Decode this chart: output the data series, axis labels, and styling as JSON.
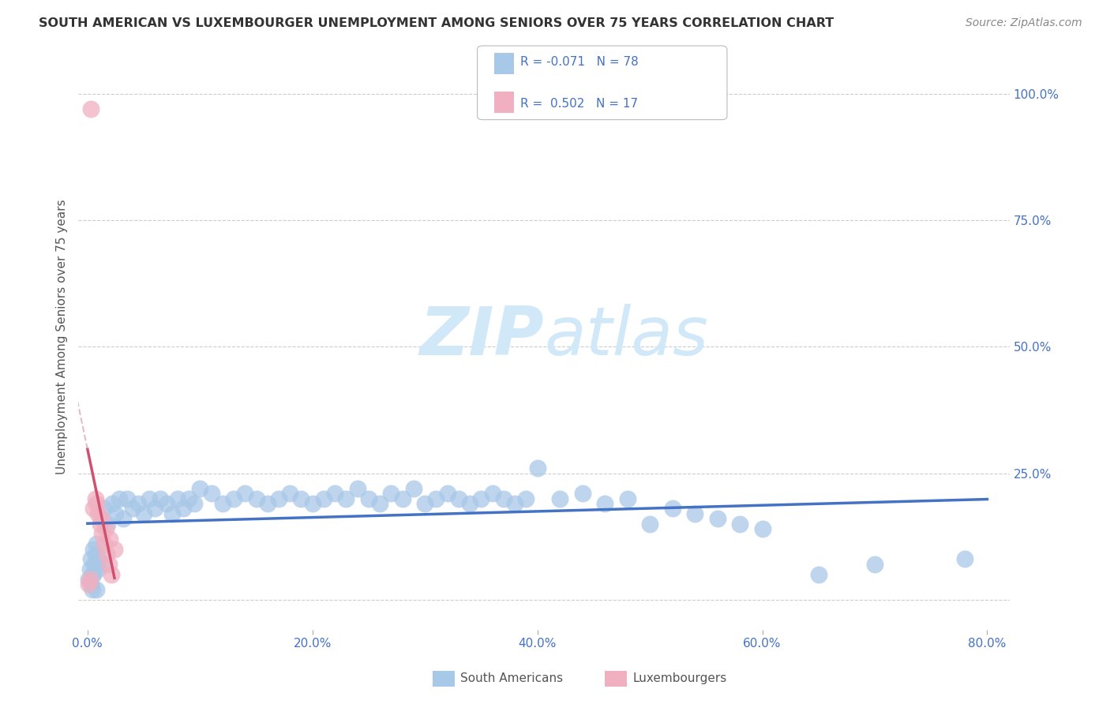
{
  "title": "SOUTH AMERICAN VS LUXEMBOURGER UNEMPLOYMENT AMONG SENIORS OVER 75 YEARS CORRELATION CHART",
  "source": "Source: ZipAtlas.com",
  "ylabel": "Unemployment Among Seniors over 75 years",
  "xlim": [
    -0.008,
    0.82
  ],
  "ylim": [
    -0.06,
    1.1
  ],
  "xticks": [
    0.0,
    0.2,
    0.4,
    0.6,
    0.8
  ],
  "xticklabels": [
    "0.0%",
    "20.0%",
    "40.0%",
    "60.0%",
    "80.0%"
  ],
  "yticks": [
    0.0,
    0.25,
    0.5,
    0.75,
    1.0
  ],
  "yticklabels_right": [
    "",
    "25.0%",
    "50.0%",
    "75.0%",
    "100.0%"
  ],
  "blue_R": -0.071,
  "blue_N": 78,
  "pink_R": 0.502,
  "pink_N": 17,
  "blue_color": "#a8c8e8",
  "pink_color": "#f0b0c0",
  "blue_line_color": "#4472c4",
  "pink_line_color": "#d05070",
  "pink_dash_color": "#d090a0",
  "legend_label_blue": "South Americans",
  "legend_label_pink": "Luxembourgers",
  "watermark_color": "#d0e8f8",
  "background_color": "#ffffff",
  "grid_color": "#cccccc",
  "tick_color": "#4472c4",
  "title_color": "#333333",
  "source_color": "#888888",
  "ylabel_color": "#555555",
  "blue_scatter_x": [
    0.002,
    0.003,
    0.001,
    0.005,
    0.004,
    0.007,
    0.006,
    0.008,
    0.009,
    0.01,
    0.003,
    0.005,
    0.008,
    0.012,
    0.015,
    0.018,
    0.022,
    0.025,
    0.028,
    0.032,
    0.035,
    0.04,
    0.045,
    0.05,
    0.055,
    0.06,
    0.065,
    0.07,
    0.075,
    0.08,
    0.085,
    0.09,
    0.095,
    0.1,
    0.11,
    0.12,
    0.13,
    0.14,
    0.15,
    0.16,
    0.17,
    0.18,
    0.19,
    0.2,
    0.21,
    0.22,
    0.23,
    0.24,
    0.25,
    0.26,
    0.27,
    0.28,
    0.29,
    0.3,
    0.31,
    0.32,
    0.33,
    0.34,
    0.35,
    0.36,
    0.37,
    0.38,
    0.39,
    0.4,
    0.42,
    0.44,
    0.46,
    0.48,
    0.5,
    0.52,
    0.54,
    0.56,
    0.58,
    0.6,
    0.65,
    0.7,
    0.78,
    0.004
  ],
  "blue_scatter_y": [
    0.06,
    0.08,
    0.04,
    0.1,
    0.05,
    0.09,
    0.07,
    0.11,
    0.06,
    0.08,
    0.03,
    0.05,
    0.02,
    0.07,
    0.18,
    0.15,
    0.19,
    0.17,
    0.2,
    0.16,
    0.2,
    0.18,
    0.19,
    0.17,
    0.2,
    0.18,
    0.2,
    0.19,
    0.17,
    0.2,
    0.18,
    0.2,
    0.19,
    0.22,
    0.21,
    0.19,
    0.2,
    0.21,
    0.2,
    0.19,
    0.2,
    0.21,
    0.2,
    0.19,
    0.2,
    0.21,
    0.2,
    0.22,
    0.2,
    0.19,
    0.21,
    0.2,
    0.22,
    0.19,
    0.2,
    0.21,
    0.2,
    0.19,
    0.2,
    0.21,
    0.2,
    0.19,
    0.2,
    0.26,
    0.2,
    0.21,
    0.19,
    0.2,
    0.15,
    0.18,
    0.17,
    0.16,
    0.15,
    0.14,
    0.05,
    0.07,
    0.08,
    0.02
  ],
  "pink_scatter_x": [
    0.003,
    0.001,
    0.002,
    0.005,
    0.007,
    0.009,
    0.011,
    0.013,
    0.015,
    0.017,
    0.019,
    0.021,
    0.008,
    0.012,
    0.016,
    0.02,
    0.024
  ],
  "pink_scatter_y": [
    0.97,
    0.03,
    0.04,
    0.18,
    0.2,
    0.17,
    0.15,
    0.13,
    0.11,
    0.09,
    0.07,
    0.05,
    0.19,
    0.16,
    0.14,
    0.12,
    0.1
  ]
}
